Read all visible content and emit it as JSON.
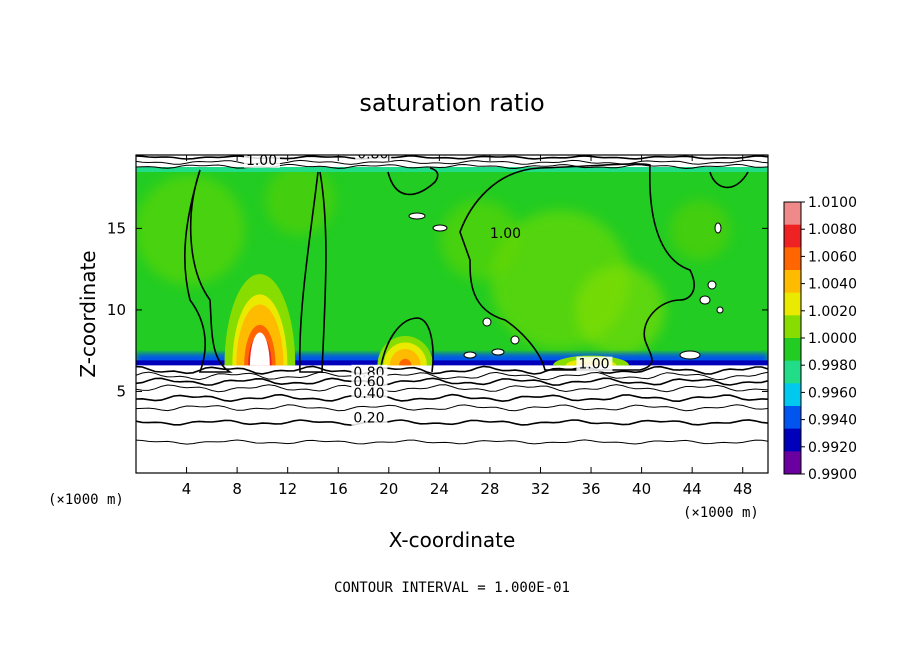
{
  "chart_data": {
    "type": "heatmap",
    "title": "saturation ratio",
    "xlabel": "X-coordinate",
    "ylabel": "Z-coordinate",
    "x_unit": "(×1000 m)",
    "y_unit": "(×1000 m)",
    "xlim": [
      0,
      50
    ],
    "ylim": [
      0,
      19.5
    ],
    "x_ticks": [
      4,
      8,
      12,
      16,
      20,
      24,
      28,
      32,
      36,
      40,
      44,
      48
    ],
    "y_ticks": [
      5,
      10,
      15
    ],
    "contour_interval_note": "CONTOUR INTERVAL = 1.000E-01",
    "colorbar": {
      "min": 0.99,
      "max": 1.01,
      "labels": [
        "1.0100",
        "1.0080",
        "1.0060",
        "1.0040",
        "1.0020",
        "1.0000",
        "0.9980",
        "0.9960",
        "0.9940",
        "0.9920",
        "0.9900"
      ],
      "colors": [
        "#f08a8a",
        "#ee2222",
        "#ff6600",
        "#ffbb00",
        "#eaea00",
        "#88dd00",
        "#22cc22",
        "#22dd88",
        "#00c8ee",
        "#0055ee",
        "#0000bb",
        "#6a00a0"
      ]
    },
    "contour_labels": [
      {
        "text": "1.00",
        "x": 8.7,
        "z": 18.9
      },
      {
        "text": "0.80",
        "x": 17.5,
        "z": 19.3
      },
      {
        "text": "1.00",
        "x": 28.0,
        "z": 14.4
      },
      {
        "text": "1.00",
        "x": 35.0,
        "z": 6.4
      },
      {
        "text": "0.80",
        "x": 17.2,
        "z": 5.9
      },
      {
        "text": "0.60",
        "x": 17.2,
        "z": 5.3
      },
      {
        "text": "0.40",
        "x": 17.2,
        "z": 4.6
      },
      {
        "text": "0.20",
        "x": 17.2,
        "z": 3.1
      }
    ],
    "cloud_tops": [
      {
        "x_center": 9.8,
        "half_width": 2.8,
        "top_z": 12.2,
        "peak": 1.01
      },
      {
        "x_center": 21.3,
        "half_width": 2.2,
        "top_z": 8.4,
        "peak": 1.007
      },
      {
        "x_center": 36.0,
        "half_width": 3.0,
        "top_z": 7.2,
        "peak": 1.005
      }
    ],
    "cloud_base_z": 6.6
  }
}
